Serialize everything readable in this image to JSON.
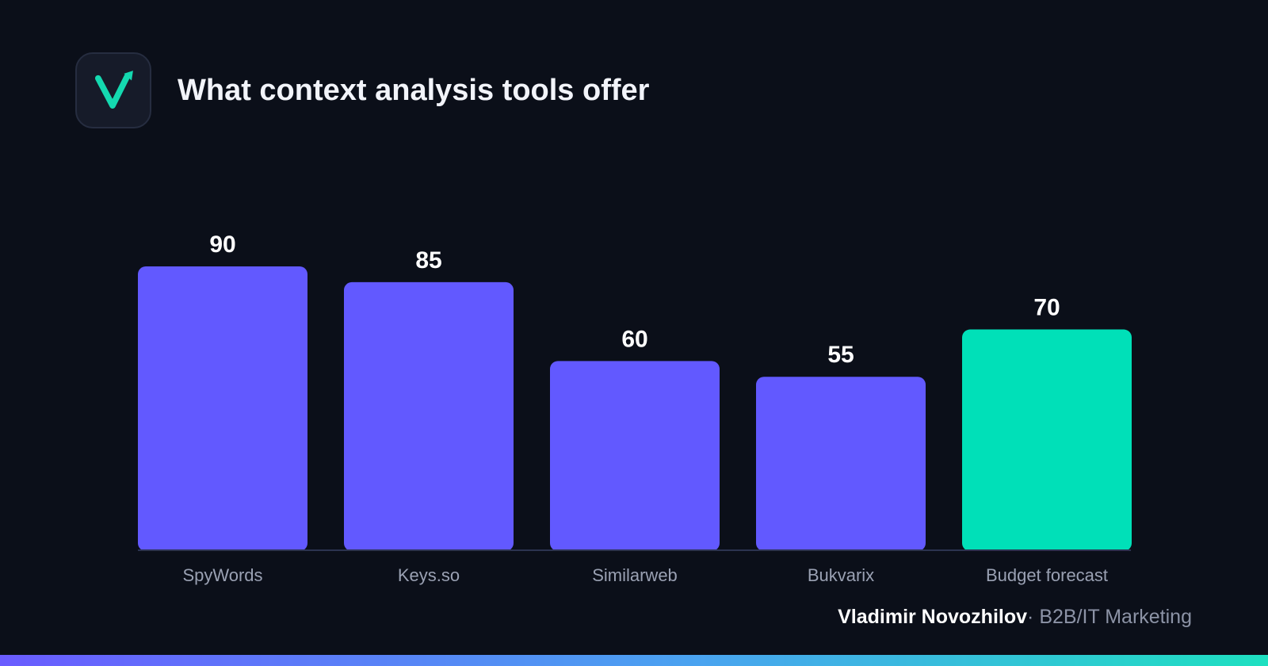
{
  "header": {
    "title": "What context analysis tools offer",
    "logo_icon": "checkmark-arrow-icon",
    "logo_color": "#14d9b0"
  },
  "chart_data": {
    "type": "bar",
    "title": "What context analysis tools offer",
    "categories": [
      "SpyWords",
      "Keys.so",
      "Similarweb",
      "Bukvarix",
      "Budget forecast"
    ],
    "values": [
      90,
      85,
      60,
      55,
      70
    ],
    "colors": [
      "#6259ff",
      "#6259ff",
      "#6259ff",
      "#6259ff",
      "#00e0b8"
    ],
    "value_labels": [
      "90",
      "85",
      "60",
      "55",
      "70"
    ],
    "xlabel": "",
    "ylabel": "",
    "ylim": [
      0,
      90
    ],
    "grid": false,
    "legend": "none",
    "axis_color": "#2c3350"
  },
  "footer": {
    "author": "Vladimir Novozhilov",
    "separator": "·",
    "role": "B2B/IT Marketing"
  },
  "colors": {
    "background": "#0b0f19",
    "accent_purple": "#6259ff",
    "accent_green": "#00e0b8"
  }
}
